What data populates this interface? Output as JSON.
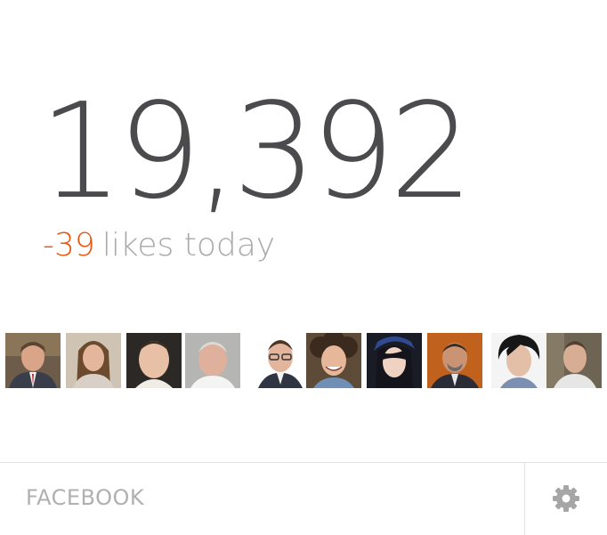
{
  "widget": {
    "total_likes": "19,392",
    "change_value": "-39",
    "change_label": "likes today"
  },
  "colors": {
    "number": "#4b4b4d",
    "negative_change": "#e8560f",
    "muted_text": "#a9a9a9",
    "footer_text": "#b0b0b0",
    "divider": "#e2e2e2",
    "gear": "#a6a6a6"
  },
  "avatars": {
    "count": 10,
    "icon": "user-photo"
  },
  "footer": {
    "label": "FACEBOOK",
    "settings_icon": "gear-icon"
  }
}
